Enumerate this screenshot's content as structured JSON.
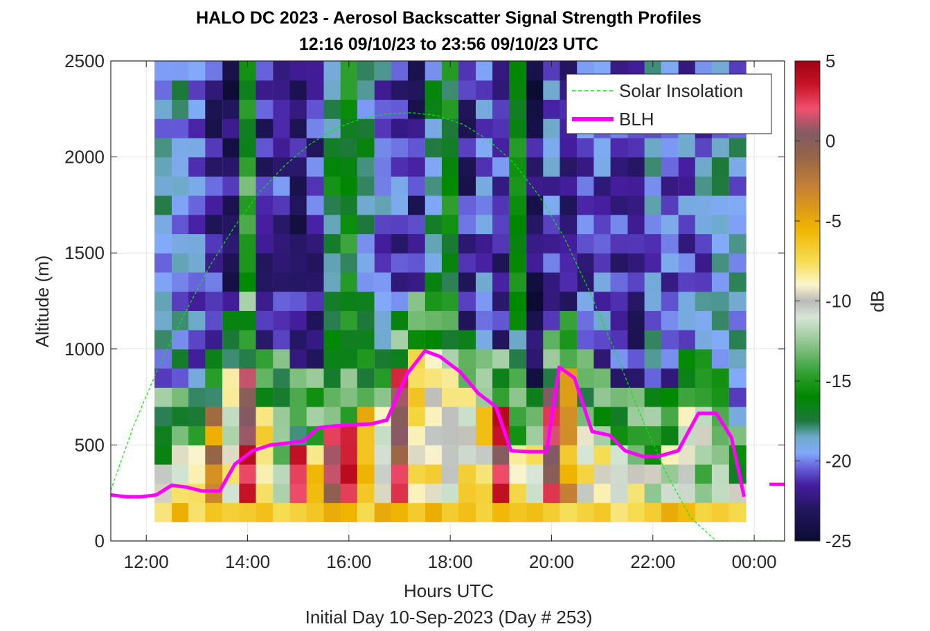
{
  "chart_data": {
    "type": "heatmap",
    "title": "HALO DC 2023 - Aerosol Backscatter Signal Strength Profiles",
    "subtitle": "12:16 09/10/23 to 23:56 09/10/23  UTC",
    "xlabel": "Hours UTC",
    "ylabel": "Altitude (m)",
    "footer": "Initial Day 10-Sep-2023 (Day # 253)",
    "x_unit": "hours UTC",
    "xlim": [
      11.3,
      24.6
    ],
    "ylim": [
      0,
      2500
    ],
    "x_ticks": [
      12,
      14,
      16,
      18,
      20,
      22,
      24
    ],
    "x_tick_labels": [
      "12:00",
      "14:00",
      "16:00",
      "18:00",
      "20:00",
      "22:00",
      "00:00"
    ],
    "y_ticks": [
      0,
      500,
      1000,
      1500,
      2000,
      2500
    ],
    "y_tick_labels": [
      "0",
      "500",
      "1000",
      "1500",
      "2000",
      "2500"
    ],
    "grid": true,
    "legend_position": "top-right",
    "colorbar": {
      "label": "dB",
      "range": [
        -25,
        5
      ],
      "ticks": [
        5,
        0,
        -5,
        -10,
        -15,
        -20,
        -25
      ],
      "tick_labels": [
        "5",
        "0",
        "-5",
        "-10",
        "-15",
        "-20",
        "-25"
      ]
    },
    "heatmap": {
      "unit": "dB",
      "x_start": 12.33,
      "x_step": 0.333,
      "y_levels": [
        150,
        250,
        350,
        450,
        550,
        650,
        750,
        850,
        950,
        1050,
        1150,
        1250,
        1350,
        1450,
        1550,
        1650,
        1750,
        1850,
        1950,
        2050,
        2150,
        2250,
        2350,
        2450
      ],
      "description": "per-column profile parameters (boundary-layer top altitude and its dB, free-troposphere dB, tints) approximated from the figure",
      "columns": [
        {
          "x": 12.33,
          "bl_top": 450,
          "bl_db": -8,
          "ft_db": -19.5
        },
        {
          "x": 12.67,
          "bl_top": 500,
          "bl_db": -9,
          "ft_db": -19.0
        },
        {
          "x": 13.0,
          "bl_top": 500,
          "bl_db": -8,
          "ft_db": -20.5
        },
        {
          "x": 13.33,
          "bl_top": 700,
          "bl_db": -3,
          "ft_db": -22.0
        },
        {
          "x": 13.67,
          "bl_top": 900,
          "bl_db": -10,
          "ft_db": -23.0
        },
        {
          "x": 14.0,
          "bl_top": 950,
          "bl_db": 2,
          "ft_db": -15.0
        },
        {
          "x": 14.33,
          "bl_top": 700,
          "bl_db": -9,
          "ft_db": -22.0
        },
        {
          "x": 14.67,
          "bl_top": 650,
          "bl_db": -12,
          "ft_db": -21.0
        },
        {
          "x": 15.0,
          "bl_top": 550,
          "bl_db": 2,
          "ft_db": -22.5
        },
        {
          "x": 15.33,
          "bl_top": 550,
          "bl_db": -6,
          "ft_db": -21.5
        },
        {
          "x": 15.67,
          "bl_top": 600,
          "bl_db": 2,
          "ft_db": -17.0
        },
        {
          "x": 16.0,
          "bl_top": 650,
          "bl_db": 2,
          "ft_db": -16.0
        },
        {
          "x": 16.33,
          "bl_top": 700,
          "bl_db": -7,
          "ft_db": -18.0
        },
        {
          "x": 16.67,
          "bl_top": 700,
          "bl_db": -9,
          "ft_db": -20.0
        },
        {
          "x": 17.0,
          "bl_top": 900,
          "bl_db": 1,
          "ft_db": -21.0
        },
        {
          "x": 17.33,
          "bl_top": 1000,
          "bl_db": -8,
          "ft_db": -22.5
        },
        {
          "x": 17.67,
          "bl_top": 1050,
          "bl_db": -9,
          "ft_db": -18.0
        },
        {
          "x": 18.0,
          "bl_top": 900,
          "bl_db": -10,
          "ft_db": -16.0
        },
        {
          "x": 18.33,
          "bl_top": 800,
          "bl_db": -9,
          "ft_db": -22.0
        },
        {
          "x": 18.67,
          "bl_top": 700,
          "bl_db": -8,
          "ft_db": -20.0
        },
        {
          "x": 19.0,
          "bl_top": 700,
          "bl_db": 2,
          "ft_db": -21.5
        },
        {
          "x": 19.33,
          "bl_top": 550,
          "bl_db": -9,
          "ft_db": -16.5
        },
        {
          "x": 19.67,
          "bl_top": 500,
          "bl_db": -9,
          "ft_db": -23.0
        },
        {
          "x": 20.0,
          "bl_top": 800,
          "bl_db": 2,
          "ft_db": -20.5
        },
        {
          "x": 20.33,
          "bl_top": 900,
          "bl_db": -5,
          "ft_db": -22.0
        },
        {
          "x": 20.67,
          "bl_top": 650,
          "bl_db": -9,
          "ft_db": -21.0
        },
        {
          "x": 21.0,
          "bl_top": 550,
          "bl_db": -10,
          "ft_db": -20.5
        },
        {
          "x": 21.33,
          "bl_top": 500,
          "bl_db": -9,
          "ft_db": -21.5
        },
        {
          "x": 21.67,
          "bl_top": 450,
          "bl_db": -10,
          "ft_db": -22.0
        },
        {
          "x": 22.0,
          "bl_top": 450,
          "bl_db": -11,
          "ft_db": -19.5
        },
        {
          "x": 22.33,
          "bl_top": 500,
          "bl_db": -10,
          "ft_db": -20.5
        },
        {
          "x": 22.67,
          "bl_top": 700,
          "bl_db": -11,
          "ft_db": -20.5
        },
        {
          "x": 23.0,
          "bl_top": 700,
          "bl_db": -12,
          "ft_db": -20.0
        },
        {
          "x": 23.33,
          "bl_top": 600,
          "bl_db": -11,
          "ft_db": -19.0
        },
        {
          "x": 23.67,
          "bl_top": 300,
          "bl_db": -10,
          "ft_db": -19.5
        }
      ]
    },
    "series": [
      {
        "name": "Solar Insolation",
        "style": "dashed",
        "color": "#00ee00",
        "x": [
          11.3,
          11.75,
          12.25,
          12.75,
          13.25,
          13.75,
          14.25,
          14.75,
          15.25,
          15.75,
          16.25,
          16.75,
          17.25,
          17.75,
          18.25,
          18.75,
          19.25,
          19.75,
          20.25,
          20.75,
          21.25,
          21.75,
          22.25,
          22.75,
          23.25,
          23.67,
          24.0,
          24.6
        ],
        "y": [
          265,
          600,
          910,
          1180,
          1430,
          1640,
          1820,
          1960,
          2070,
          2150,
          2200,
          2225,
          2230,
          2215,
          2170,
          2090,
          1970,
          1800,
          1580,
          1300,
          990,
          660,
          360,
          120,
          0,
          0,
          0,
          0
        ]
      },
      {
        "name": "BLH",
        "style": "solid",
        "color": "#ff00ff",
        "x": [
          11.3,
          11.6,
          11.9,
          12.2,
          12.5,
          12.8,
          13.1,
          13.45,
          13.75,
          14.1,
          14.45,
          14.8,
          15.1,
          15.4,
          15.75,
          16.1,
          16.45,
          16.75,
          17.15,
          17.5,
          17.8,
          18.2,
          18.55,
          18.9,
          19.2,
          19.55,
          19.9,
          20.15,
          20.45,
          20.8,
          21.15,
          21.45,
          21.8,
          22.1,
          22.5,
          22.9,
          23.25,
          23.55,
          23.8
        ],
        "y": [
          240,
          230,
          230,
          240,
          290,
          280,
          260,
          260,
          400,
          470,
          500,
          510,
          520,
          590,
          600,
          605,
          610,
          630,
          870,
          990,
          960,
          880,
          770,
          700,
          470,
          465,
          465,
          905,
          850,
          570,
          550,
          470,
          440,
          440,
          470,
          665,
          665,
          540,
          230
        ]
      },
      {
        "name": "",
        "style": "solid",
        "color": "#ff00ff",
        "x": [
          24.3,
          24.6
        ],
        "y": [
          295,
          295
        ]
      }
    ]
  }
}
